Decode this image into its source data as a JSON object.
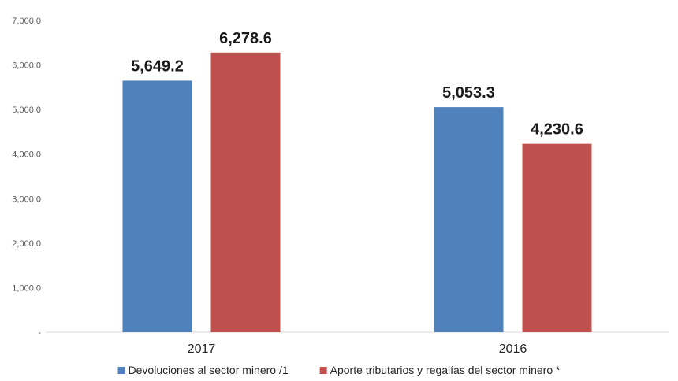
{
  "chart_data": {
    "type": "bar",
    "categories": [
      "2017",
      "2016"
    ],
    "series": [
      {
        "name": "Devoluciones al sector minero /1",
        "color": "#4f81bd",
        "values": [
          5649.2,
          5053.3
        ],
        "labels": [
          "5,649.2",
          "5,053.3"
        ]
      },
      {
        "name": "Aporte tributarios y regalías del sector minero *",
        "color": "#c0504d",
        "values": [
          6278.6,
          4230.6
        ],
        "labels": [
          "6,278.6",
          "4,230.6"
        ]
      }
    ],
    "ylim": [
      0,
      7000
    ],
    "yticks": [
      {
        "value": 0,
        "label": "-"
      },
      {
        "value": 1000,
        "label": "1,000.0"
      },
      {
        "value": 2000,
        "label": "2,000.0"
      },
      {
        "value": 3000,
        "label": "3,000.0"
      },
      {
        "value": 4000,
        "label": "4,000.0"
      },
      {
        "value": 5000,
        "label": "5,000.0"
      },
      {
        "value": 6000,
        "label": "6,000.0"
      },
      {
        "value": 7000,
        "label": "7,000.0"
      }
    ],
    "grid": false,
    "legend": "bottom"
  }
}
